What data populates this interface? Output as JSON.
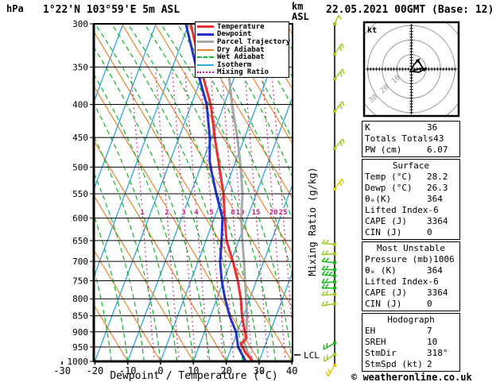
{
  "header": {
    "station_title": "1°22'N 103°59'E 5m ASL",
    "datetime_title": "22.05.2021 00GMT (Base: 12)"
  },
  "axes": {
    "pressure_unit": "hPa",
    "altitude_unit_top": "km",
    "altitude_unit_bottom": "ASL",
    "x_axis_label": "Dewpoint / Temperature (°C)",
    "mixing_ratio_axis_label": "Mixing Ratio (g/kg)",
    "lcl_label": "LCL",
    "hodograph_unit": "kt",
    "pressure_ticks": [
      300,
      350,
      400,
      450,
      500,
      550,
      600,
      650,
      700,
      750,
      800,
      850,
      900,
      950,
      1000
    ],
    "temperature_ticks": [
      -30,
      -20,
      -10,
      0,
      10,
      20,
      30,
      40
    ]
  },
  "legend": [
    {
      "label": "Temperature",
      "color": "#e83030",
      "width": 3,
      "style": "solid"
    },
    {
      "label": "Dewpoint",
      "color": "#2432c8",
      "width": 3,
      "style": "solid"
    },
    {
      "label": "Parcel Trajectory",
      "color": "#a8a8a8",
      "width": 3,
      "style": "solid"
    },
    {
      "label": "Dry Adiabat",
      "color": "#e8862c",
      "width": 2,
      "style": "solid"
    },
    {
      "label": "Wet Adiabat",
      "color": "#10b428",
      "width": 2,
      "style": "dashed"
    },
    {
      "label": "Isotherm",
      "color": "#38a8e0",
      "width": 2,
      "style": "solid"
    },
    {
      "label": "Mixing Ratio",
      "color": "#cc1177",
      "width": 2,
      "style": "dotted"
    }
  ],
  "chart_data": {
    "type": "skewt-log-p-sounding",
    "pressure_axis_hpa": [
      300,
      1000
    ],
    "temperature_axis_c": [
      -30,
      40
    ],
    "isotherm_step_c": 10,
    "mixing_ratio_lines_g_kg": [
      1,
      2,
      3,
      4,
      5,
      6,
      8,
      10,
      15,
      20,
      25
    ],
    "mixing_ratio_label_x": [
      179,
      210,
      231,
      247,
      266,
      279,
      293,
      302,
      322,
      344,
      356
    ],
    "temperature_profile_p_t": [
      [
        1000,
        28.1
      ],
      [
        970,
        24.9
      ],
      [
        940,
        22.5
      ],
      [
        920,
        23.5
      ],
      [
        900,
        22.3
      ],
      [
        850,
        19.6
      ],
      [
        800,
        17.3
      ],
      [
        750,
        14.3
      ],
      [
        700,
        10.6
      ],
      [
        650,
        6.3
      ],
      [
        600,
        3.2
      ],
      [
        550,
        0.0
      ],
      [
        500,
        -4.3
      ],
      [
        450,
        -9.1
      ],
      [
        400,
        -14.1
      ],
      [
        350,
        -21.5
      ],
      [
        300,
        -29.4
      ]
    ],
    "dewpoint_profile_p_t": [
      [
        1000,
        25.9
      ],
      [
        950,
        22.0
      ],
      [
        900,
        19.6
      ],
      [
        850,
        15.8
      ],
      [
        800,
        12.5
      ],
      [
        750,
        9.4
      ],
      [
        700,
        6.7
      ],
      [
        650,
        4.8
      ],
      [
        600,
        2.5
      ],
      [
        550,
        -2.2
      ],
      [
        510,
        -6.0
      ],
      [
        490,
        -7.9
      ],
      [
        450,
        -10.6
      ],
      [
        400,
        -15.3
      ],
      [
        350,
        -22.8
      ],
      [
        300,
        -30.9
      ]
    ],
    "parcel_profile_p_t": [
      [
        1000,
        28.1
      ],
      [
        970,
        25.6
      ],
      [
        935,
        23.3
      ],
      [
        920,
        23.4
      ],
      [
        850,
        21.1
      ],
      [
        800,
        18.9
      ],
      [
        750,
        16.5
      ],
      [
        700,
        14.0
      ],
      [
        650,
        11.1
      ],
      [
        600,
        8.2
      ],
      [
        550,
        5.8
      ],
      [
        500,
        2.2
      ],
      [
        450,
        -2.2
      ],
      [
        400,
        -7.6
      ],
      [
        350,
        -13.1
      ],
      [
        300,
        -19.0
      ]
    ],
    "lcl_pressure_hpa": 977,
    "wind_barbs": [
      {
        "p": 300,
        "color": "yg",
        "dir": 25,
        "ticks": 1
      },
      {
        "p": 334,
        "color": "yg",
        "dir": 35,
        "ticks": 2
      },
      {
        "p": 365,
        "color": "yg",
        "dir": 40,
        "ticks": 2
      },
      {
        "p": 410,
        "color": "yg",
        "dir": 38,
        "ticks": 2
      },
      {
        "p": 468,
        "color": "yg",
        "dir": 40,
        "ticks": 2
      },
      {
        "p": 541,
        "color": "y",
        "dir": 35,
        "ticks": 2
      },
      {
        "p": 659,
        "color": "yg",
        "dir": -85,
        "ticks": 2
      },
      {
        "p": 681,
        "color": "yg",
        "dir": -95,
        "ticks": 2
      },
      {
        "p": 703,
        "color": "g",
        "dir": -85,
        "ticks": 2
      },
      {
        "p": 721,
        "color": "g",
        "dir": -90,
        "ticks": 2
      },
      {
        "p": 737,
        "color": "g",
        "dir": -85,
        "ticks": 3
      },
      {
        "p": 753,
        "color": "g",
        "dir": -95,
        "ticks": 2
      },
      {
        "p": 770,
        "color": "g",
        "dir": -90,
        "ticks": 2
      },
      {
        "p": 787,
        "color": "yg",
        "dir": -95,
        "ticks": 2
      },
      {
        "p": 814,
        "color": "yg",
        "dir": -100,
        "ticks": 2
      },
      {
        "p": 937,
        "color": "g",
        "dir": -120,
        "ticks": 2
      },
      {
        "p": 975,
        "color": "yg",
        "dir": -125,
        "ticks": 2
      },
      {
        "p": 1013,
        "color": "y",
        "dir": -150,
        "ticks": 2
      }
    ],
    "hodograph": {
      "unit": "kt",
      "ring_radii_kt": [
        10,
        20,
        30,
        40
      ],
      "ring_labels": [
        "10",
        "20",
        "30"
      ],
      "trace_uv_kt": [
        [
          -0.8,
          -1.6
        ],
        [
          1.9,
          3.3
        ],
        [
          4.6,
          6.0
        ],
        [
          6.3,
          3.3
        ],
        [
          7.9,
          0.5
        ],
        [
          4.1,
          0.0
        ],
        [
          0.3,
          -1.6
        ],
        [
          5.2,
          -2.2
        ],
        [
          9.0,
          0.0
        ]
      ]
    }
  },
  "tables": [
    {
      "title": null,
      "rows": [
        [
          "K",
          "36"
        ],
        [
          "Totals Totals",
          "43"
        ],
        [
          "PW (cm)",
          "6.07"
        ]
      ]
    },
    {
      "title": "Surface",
      "rows": [
        [
          "Temp (°C)",
          "28.2"
        ],
        [
          "Dewp (°C)",
          "26.3"
        ],
        [
          "θₑ(K)",
          "364"
        ],
        [
          "Lifted Index",
          "-6"
        ],
        [
          "CAPE (J)",
          "3364"
        ],
        [
          "CIN (J)",
          "0"
        ]
      ]
    },
    {
      "title": "Most Unstable",
      "rows": [
        [
          "Pressure (mb)",
          "1006"
        ],
        [
          "θₑ (K)",
          "364"
        ],
        [
          "Lifted Index",
          "-6"
        ],
        [
          "CAPE (J)",
          "3364"
        ],
        [
          "CIN (J)",
          "0"
        ]
      ]
    },
    {
      "title": "Hodograph",
      "rows": [
        [
          "EH",
          "7"
        ],
        [
          "SREH",
          "10"
        ],
        [
          "StmDir",
          "318°"
        ],
        [
          "StmSpd (kt)",
          "2"
        ]
      ]
    }
  ],
  "footer": {
    "copyright": "© weatheronline.co.uk"
  },
  "colors": {
    "temperature": "#e83030",
    "dewpoint": "#2432c8",
    "parcel": "#a8a8a8",
    "dry_adiabat": "#e8862c",
    "wet_adiabat": "#10b428",
    "isotherm": "#38a8e0",
    "mixing_ratio": "#cc1177",
    "grid": "#000000",
    "hodograph_rings": "#999999",
    "barb_yg": "#9ccc22",
    "barb_y": "#e2cc00",
    "barb_g": "#18b818"
  }
}
